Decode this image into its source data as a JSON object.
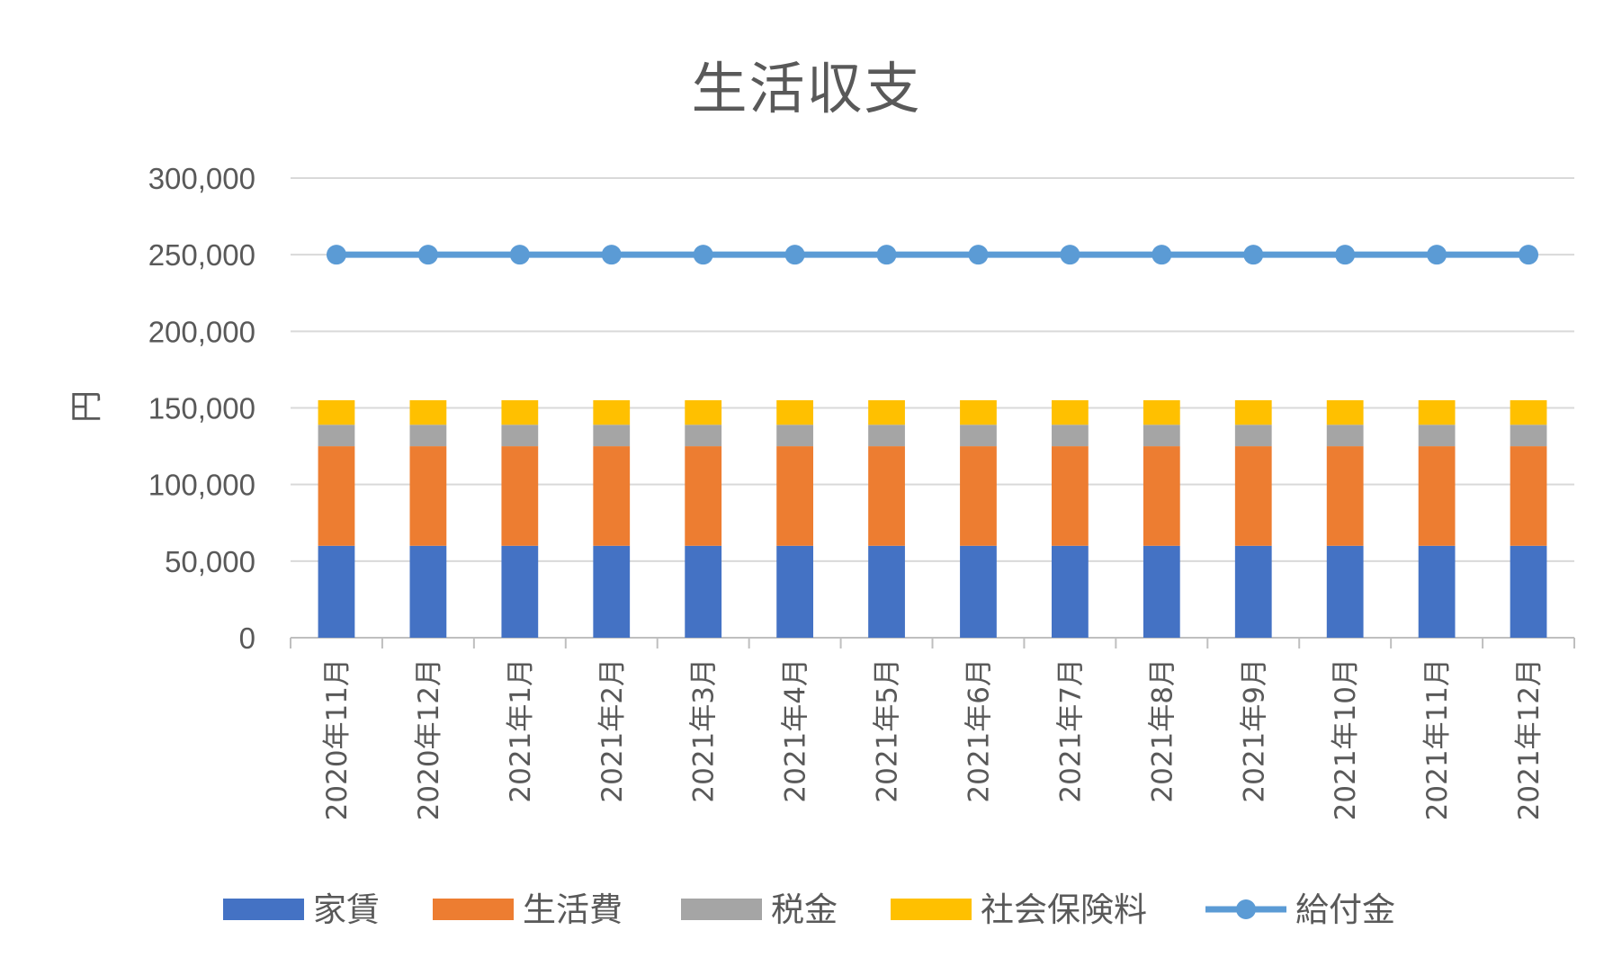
{
  "chart_data": {
    "type": "bar",
    "stacked": true,
    "title": "生活収支",
    "xlabel": "",
    "ylabel": "円",
    "ylim": [
      0,
      300000
    ],
    "yticks": [
      0,
      50000,
      100000,
      150000,
      200000,
      250000,
      300000
    ],
    "ytick_labels": [
      "0",
      "50,000",
      "100,000",
      "150,000",
      "200,000",
      "250,000",
      "300,000"
    ],
    "grid": true,
    "legend_position": "bottom",
    "categories": [
      "2020年11月",
      "2020年12月",
      "2021年1月",
      "2021年2月",
      "2021年3月",
      "2021年4月",
      "2021年5月",
      "2021年6月",
      "2021年7月",
      "2021年8月",
      "2021年9月",
      "2021年10月",
      "2021年11月",
      "2021年12月"
    ],
    "series": [
      {
        "name": "家賃",
        "type": "bar",
        "color": "#4472C4",
        "values": [
          60000,
          60000,
          60000,
          60000,
          60000,
          60000,
          60000,
          60000,
          60000,
          60000,
          60000,
          60000,
          60000,
          60000
        ]
      },
      {
        "name": "生活費",
        "type": "bar",
        "color": "#ED7D31",
        "values": [
          65000,
          65000,
          65000,
          65000,
          65000,
          65000,
          65000,
          65000,
          65000,
          65000,
          65000,
          65000,
          65000,
          65000
        ]
      },
      {
        "name": "税金",
        "type": "bar",
        "color": "#A5A5A5",
        "values": [
          14000,
          14000,
          14000,
          14000,
          14000,
          14000,
          14000,
          14000,
          14000,
          14000,
          14000,
          14000,
          14000,
          14000
        ]
      },
      {
        "name": "社会保険料",
        "type": "bar",
        "color": "#FFC000",
        "values": [
          16000,
          16000,
          16000,
          16000,
          16000,
          16000,
          16000,
          16000,
          16000,
          16000,
          16000,
          16000,
          16000,
          16000
        ]
      },
      {
        "name": "給付金",
        "type": "line",
        "color": "#5B9BD5",
        "values": [
          250000,
          250000,
          250000,
          250000,
          250000,
          250000,
          250000,
          250000,
          250000,
          250000,
          250000,
          250000,
          250000,
          250000
        ]
      }
    ]
  }
}
